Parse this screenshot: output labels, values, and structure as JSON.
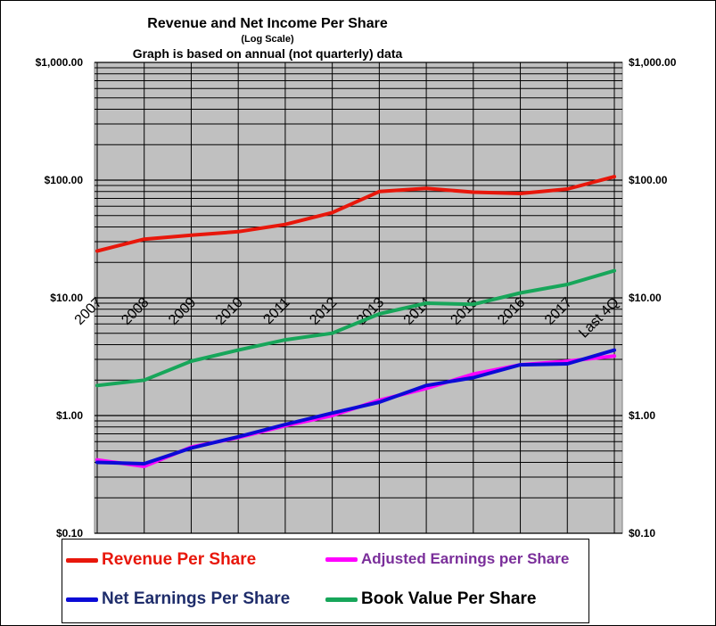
{
  "chart_data": {
    "type": "line",
    "title": "Revenue  and Net Income  Per Share",
    "subtitle": "(Log Scale)",
    "note": "Graph is based  on annual  (not quarterly) data",
    "yscale": "log",
    "ylim": [
      0.1,
      1000
    ],
    "y_ticks": [
      {
        "value": 1000,
        "label": "$1,000.00"
      },
      {
        "value": 100,
        "label": "$100.00"
      },
      {
        "value": 10,
        "label": "$10.00"
      },
      {
        "value": 1,
        "label": "$1.00"
      },
      {
        "value": 0.1,
        "label": "$0.10"
      }
    ],
    "x_tick_labels": [
      "2007",
      "2008",
      "2009",
      "2010",
      "2011",
      "2012",
      "2013",
      "2014",
      "2015",
      "2016",
      "2017",
      "Last 4Q"
    ],
    "grid": true,
    "background": "#c0c0c0",
    "legend_position": "bottom",
    "series": [
      {
        "name": "Revenue Per Share",
        "color": "#e8170b",
        "values": [
          25,
          31.5,
          34,
          36.5,
          42,
          53,
          80,
          85,
          79,
          77,
          84,
          107
        ]
      },
      {
        "name": "Adjusted Earnings per Share",
        "color": "#ff00ff",
        "values": [
          0.42,
          0.37,
          0.54,
          0.65,
          0.82,
          1.0,
          1.35,
          1.7,
          2.25,
          2.7,
          2.9,
          3.2
        ]
      },
      {
        "name": "Net Earnings Per Share",
        "color": "#0b0bd6",
        "values": [
          0.4,
          0.39,
          0.53,
          0.66,
          0.84,
          1.05,
          1.3,
          1.8,
          2.1,
          2.7,
          2.75,
          3.6
        ]
      },
      {
        "name": "Book Value Per Share",
        "color": "#17a65a",
        "values": [
          1.8,
          2.0,
          2.9,
          3.6,
          4.4,
          5.0,
          7.3,
          9.0,
          8.8,
          11.0,
          13.0,
          17.0
        ]
      }
    ]
  },
  "legend": [
    {
      "label": "Revenue Per Share",
      "color": "#e8170b",
      "text_color": "#e8170b"
    },
    {
      "label": "Adjusted Earnings per Share",
      "color": "#ff00ff",
      "text_color": "#7a2e9a"
    },
    {
      "label": "Net Earnings Per Share",
      "color": "#0b0bd6",
      "text_color": "#1f2d6b"
    },
    {
      "label": "Book Value Per Share",
      "color": "#17a65a",
      "text_color": "#000000"
    }
  ]
}
